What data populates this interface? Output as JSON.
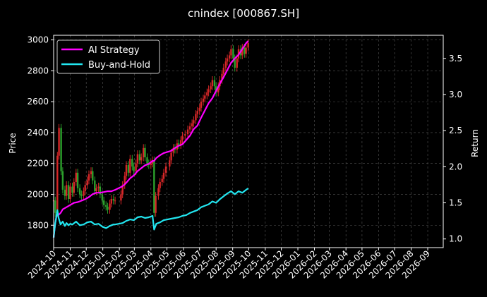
{
  "chart_data": {
    "type": "line",
    "title": "cnindex [000867.SH]",
    "ylabel_left": "Price",
    "ylabel_right": "Return",
    "y_left_ticks": [
      1800,
      2000,
      2200,
      2400,
      2600,
      2800,
      3000
    ],
    "y_left_lim": [
      1655,
      3030
    ],
    "y_right_ticks": [
      1.0,
      1.5,
      2.0,
      2.5,
      3.0,
      3.5
    ],
    "y_right_lim": [
      0.88,
      3.82
    ],
    "x_start": "2024-10-01",
    "x_end": "2026-09-30",
    "x_ticks": [
      "2024-10",
      "2024-11",
      "2024-12",
      "2025-01",
      "2025-02",
      "2025-03",
      "2025-04",
      "2025-05",
      "2025-06",
      "2025-07",
      "2025-08",
      "2025-09",
      "2025-10",
      "2025-11",
      "2025-12",
      "2026-01",
      "2026-02",
      "2026-03",
      "2026-04",
      "2026-05",
      "2026-06",
      "2026-07",
      "2026-08",
      "2026-09"
    ],
    "grid": true,
    "legend_position": "upper-left",
    "candles_color_up": "#d62728",
    "candles_color_down": "#2ca02c",
    "candles": [
      {
        "date": "2024-10-01",
        "close": 1960
      },
      {
        "date": "2024-10-04",
        "close": 1880
      },
      {
        "date": "2024-10-08",
        "close": 2250
      },
      {
        "date": "2024-10-11",
        "close": 2430
      },
      {
        "date": "2024-10-15",
        "close": 2150
      },
      {
        "date": "2024-10-18",
        "close": 2030
      },
      {
        "date": "2024-10-22",
        "close": 1990
      },
      {
        "date": "2024-10-25",
        "close": 2060
      },
      {
        "date": "2024-10-29",
        "close": 1970
      },
      {
        "date": "2024-11-01",
        "close": 2050
      },
      {
        "date": "2024-11-05",
        "close": 2010
      },
      {
        "date": "2024-11-08",
        "close": 2080
      },
      {
        "date": "2024-11-12",
        "close": 2140
      },
      {
        "date": "2024-11-15",
        "close": 2040
      },
      {
        "date": "2024-11-19",
        "close": 2000
      },
      {
        "date": "2024-11-22",
        "close": 1990
      },
      {
        "date": "2024-11-26",
        "close": 2020
      },
      {
        "date": "2024-11-29",
        "close": 2060
      },
      {
        "date": "2024-12-03",
        "close": 2090
      },
      {
        "date": "2024-12-06",
        "close": 2130
      },
      {
        "date": "2024-12-10",
        "close": 2150
      },
      {
        "date": "2024-12-13",
        "close": 2090
      },
      {
        "date": "2024-12-17",
        "close": 2020
      },
      {
        "date": "2024-12-20",
        "close": 2040
      },
      {
        "date": "2024-12-24",
        "close": 2050
      },
      {
        "date": "2024-12-27",
        "close": 2000
      },
      {
        "date": "2024-12-31",
        "close": 1960
      },
      {
        "date": "2025-01-03",
        "close": 1930
      },
      {
        "date": "2025-01-07",
        "close": 1920
      },
      {
        "date": "2025-01-10",
        "close": 1900
      },
      {
        "date": "2025-01-14",
        "close": 1940
      },
      {
        "date": "2025-01-17",
        "close": 1970
      },
      {
        "date": "2025-01-21",
        "close": 1960
      },
      {
        "date": "2025-01-24",
        "close": 1960
      },
      {
        "date": "2025-02-04",
        "close": 2000
      },
      {
        "date": "2025-02-07",
        "close": 2060
      },
      {
        "date": "2025-02-11",
        "close": 2120
      },
      {
        "date": "2025-02-14",
        "close": 2190
      },
      {
        "date": "2025-02-18",
        "close": 2140
      },
      {
        "date": "2025-02-21",
        "close": 2230
      },
      {
        "date": "2025-02-25",
        "close": 2180
      },
      {
        "date": "2025-02-28",
        "close": 2150
      },
      {
        "date": "2025-03-04",
        "close": 2200
      },
      {
        "date": "2025-03-07",
        "close": 2260
      },
      {
        "date": "2025-03-11",
        "close": 2220
      },
      {
        "date": "2025-03-14",
        "close": 2240
      },
      {
        "date": "2025-03-18",
        "close": 2300
      },
      {
        "date": "2025-03-21",
        "close": 2240
      },
      {
        "date": "2025-03-25",
        "close": 2200
      },
      {
        "date": "2025-03-28",
        "close": 2190
      },
      {
        "date": "2025-04-01",
        "close": 2200
      },
      {
        "date": "2025-04-04",
        "close": 2220
      },
      {
        "date": "2025-04-07",
        "close": 1880
      },
      {
        "date": "2025-04-10",
        "close": 1990
      },
      {
        "date": "2025-04-15",
        "close": 2040
      },
      {
        "date": "2025-04-18",
        "close": 2080
      },
      {
        "date": "2025-04-22",
        "close": 2100
      },
      {
        "date": "2025-04-25",
        "close": 2140
      },
      {
        "date": "2025-04-29",
        "close": 2180
      },
      {
        "date": "2025-05-06",
        "close": 2220
      },
      {
        "date": "2025-05-09",
        "close": 2270
      },
      {
        "date": "2025-05-13",
        "close": 2300
      },
      {
        "date": "2025-05-16",
        "close": 2290
      },
      {
        "date": "2025-05-20",
        "close": 2330
      },
      {
        "date": "2025-05-23",
        "close": 2320
      },
      {
        "date": "2025-05-27",
        "close": 2350
      },
      {
        "date": "2025-05-30",
        "close": 2380
      },
      {
        "date": "2025-06-04",
        "close": 2390
      },
      {
        "date": "2025-06-09",
        "close": 2420
      },
      {
        "date": "2025-06-13",
        "close": 2440
      },
      {
        "date": "2025-06-17",
        "close": 2460
      },
      {
        "date": "2025-06-20",
        "close": 2480
      },
      {
        "date": "2025-06-24",
        "close": 2520
      },
      {
        "date": "2025-06-27",
        "close": 2540
      },
      {
        "date": "2025-07-01",
        "close": 2560
      },
      {
        "date": "2025-07-04",
        "close": 2600
      },
      {
        "date": "2025-07-08",
        "close": 2620
      },
      {
        "date": "2025-07-11",
        "close": 2640
      },
      {
        "date": "2025-07-15",
        "close": 2660
      },
      {
        "date": "2025-07-18",
        "close": 2680
      },
      {
        "date": "2025-07-22",
        "close": 2700
      },
      {
        "date": "2025-07-25",
        "close": 2740
      },
      {
        "date": "2025-07-29",
        "close": 2700
      },
      {
        "date": "2025-08-01",
        "close": 2660
      },
      {
        "date": "2025-08-05",
        "close": 2700
      },
      {
        "date": "2025-08-08",
        "close": 2740
      },
      {
        "date": "2025-08-12",
        "close": 2780
      },
      {
        "date": "2025-08-15",
        "close": 2820
      },
      {
        "date": "2025-08-19",
        "close": 2860
      },
      {
        "date": "2025-08-22",
        "close": 2880
      },
      {
        "date": "2025-08-26",
        "close": 2900
      },
      {
        "date": "2025-08-29",
        "close": 2940
      },
      {
        "date": "2025-09-02",
        "close": 2880
      },
      {
        "date": "2025-09-05",
        "close": 2820
      },
      {
        "date": "2025-09-09",
        "close": 2880
      },
      {
        "date": "2025-09-12",
        "close": 2940
      },
      {
        "date": "2025-09-16",
        "close": 2900
      },
      {
        "date": "2025-09-19",
        "close": 2950
      },
      {
        "date": "2025-09-23",
        "close": 2910
      },
      {
        "date": "2025-09-26",
        "close": 2950
      },
      {
        "date": "2025-09-30",
        "close": 2980
      }
    ],
    "series": [
      {
        "name": "AI Strategy",
        "color": "#ff00ff",
        "axis": "right",
        "points": [
          [
            "2024-10-01",
            1.02
          ],
          [
            "2024-10-04",
            1.22
          ],
          [
            "2024-10-08",
            1.38
          ],
          [
            "2024-10-10",
            1.33
          ],
          [
            "2024-10-14",
            1.36
          ],
          [
            "2024-10-18",
            1.41
          ],
          [
            "2024-10-25",
            1.44
          ],
          [
            "2024-11-01",
            1.47
          ],
          [
            "2024-11-08",
            1.5
          ],
          [
            "2024-11-15",
            1.51
          ],
          [
            "2024-11-22",
            1.53
          ],
          [
            "2024-11-29",
            1.55
          ],
          [
            "2024-12-06",
            1.58
          ],
          [
            "2024-12-13",
            1.62
          ],
          [
            "2024-12-20",
            1.64
          ],
          [
            "2024-12-27",
            1.64
          ],
          [
            "2025-01-03",
            1.65
          ],
          [
            "2025-01-10",
            1.66
          ],
          [
            "2025-01-17",
            1.66
          ],
          [
            "2025-01-24",
            1.68
          ],
          [
            "2025-02-07",
            1.73
          ],
          [
            "2025-02-14",
            1.78
          ],
          [
            "2025-02-21",
            1.84
          ],
          [
            "2025-02-28",
            1.88
          ],
          [
            "2025-03-07",
            1.94
          ],
          [
            "2025-03-14",
            1.98
          ],
          [
            "2025-03-21",
            2.02
          ],
          [
            "2025-03-28",
            2.04
          ],
          [
            "2025-04-04",
            2.08
          ],
          [
            "2025-04-07",
            2.08
          ],
          [
            "2025-04-11",
            2.12
          ],
          [
            "2025-04-18",
            2.16
          ],
          [
            "2025-04-25",
            2.19
          ],
          [
            "2025-05-09",
            2.22
          ],
          [
            "2025-05-16",
            2.26
          ],
          [
            "2025-05-23",
            2.29
          ],
          [
            "2025-05-30",
            2.31
          ],
          [
            "2025-06-06",
            2.37
          ],
          [
            "2025-06-13",
            2.43
          ],
          [
            "2025-06-20",
            2.52
          ],
          [
            "2025-06-27",
            2.57
          ],
          [
            "2025-07-04",
            2.68
          ],
          [
            "2025-07-11",
            2.78
          ],
          [
            "2025-07-18",
            2.88
          ],
          [
            "2025-07-25",
            2.95
          ],
          [
            "2025-08-01",
            3.05
          ],
          [
            "2025-08-08",
            3.15
          ],
          [
            "2025-08-15",
            3.24
          ],
          [
            "2025-08-22",
            3.34
          ],
          [
            "2025-08-29",
            3.44
          ],
          [
            "2025-09-05",
            3.5
          ],
          [
            "2025-09-12",
            3.55
          ],
          [
            "2025-09-19",
            3.63
          ],
          [
            "2025-09-26",
            3.71
          ],
          [
            "2025-09-30",
            3.74
          ]
        ]
      },
      {
        "name": "Buy-and-Hold",
        "color": "#22e6f0",
        "axis": "right",
        "points": [
          [
            "2024-10-01",
            1.02
          ],
          [
            "2024-10-04",
            1.22
          ],
          [
            "2024-10-08",
            1.4
          ],
          [
            "2024-10-10",
            1.3
          ],
          [
            "2024-10-14",
            1.2
          ],
          [
            "2024-10-18",
            1.24
          ],
          [
            "2024-10-22",
            1.18
          ],
          [
            "2024-10-25",
            1.22
          ],
          [
            "2024-10-29",
            1.19
          ],
          [
            "2024-11-01",
            1.21
          ],
          [
            "2024-11-05",
            1.2
          ],
          [
            "2024-11-12",
            1.24
          ],
          [
            "2024-11-19",
            1.19
          ],
          [
            "2024-11-26",
            1.2
          ],
          [
            "2024-12-03",
            1.23
          ],
          [
            "2024-12-10",
            1.24
          ],
          [
            "2024-12-17",
            1.2
          ],
          [
            "2024-12-24",
            1.21
          ],
          [
            "2024-12-31",
            1.17
          ],
          [
            "2025-01-07",
            1.15
          ],
          [
            "2025-01-14",
            1.18
          ],
          [
            "2025-01-21",
            1.2
          ],
          [
            "2025-01-24",
            1.2
          ],
          [
            "2025-02-07",
            1.22
          ],
          [
            "2025-02-14",
            1.25
          ],
          [
            "2025-02-21",
            1.27
          ],
          [
            "2025-02-28",
            1.26
          ],
          [
            "2025-03-07",
            1.3
          ],
          [
            "2025-03-14",
            1.31
          ],
          [
            "2025-03-21",
            1.29
          ],
          [
            "2025-03-28",
            1.3
          ],
          [
            "2025-04-04",
            1.32
          ],
          [
            "2025-04-07",
            1.13
          ],
          [
            "2025-04-11",
            1.21
          ],
          [
            "2025-04-18",
            1.23
          ],
          [
            "2025-04-25",
            1.26
          ],
          [
            "2025-05-09",
            1.28
          ],
          [
            "2025-05-16",
            1.29
          ],
          [
            "2025-05-23",
            1.3
          ],
          [
            "2025-05-30",
            1.32
          ],
          [
            "2025-06-06",
            1.33
          ],
          [
            "2025-06-13",
            1.36
          ],
          [
            "2025-06-20",
            1.38
          ],
          [
            "2025-06-27",
            1.4
          ],
          [
            "2025-07-04",
            1.44
          ],
          [
            "2025-07-11",
            1.46
          ],
          [
            "2025-07-18",
            1.48
          ],
          [
            "2025-07-25",
            1.52
          ],
          [
            "2025-08-01",
            1.5
          ],
          [
            "2025-08-08",
            1.55
          ],
          [
            "2025-08-15",
            1.59
          ],
          [
            "2025-08-22",
            1.63
          ],
          [
            "2025-08-29",
            1.66
          ],
          [
            "2025-09-05",
            1.62
          ],
          [
            "2025-09-12",
            1.66
          ],
          [
            "2025-09-19",
            1.64
          ],
          [
            "2025-09-26",
            1.68
          ],
          [
            "2025-09-30",
            1.7
          ]
        ]
      }
    ]
  }
}
